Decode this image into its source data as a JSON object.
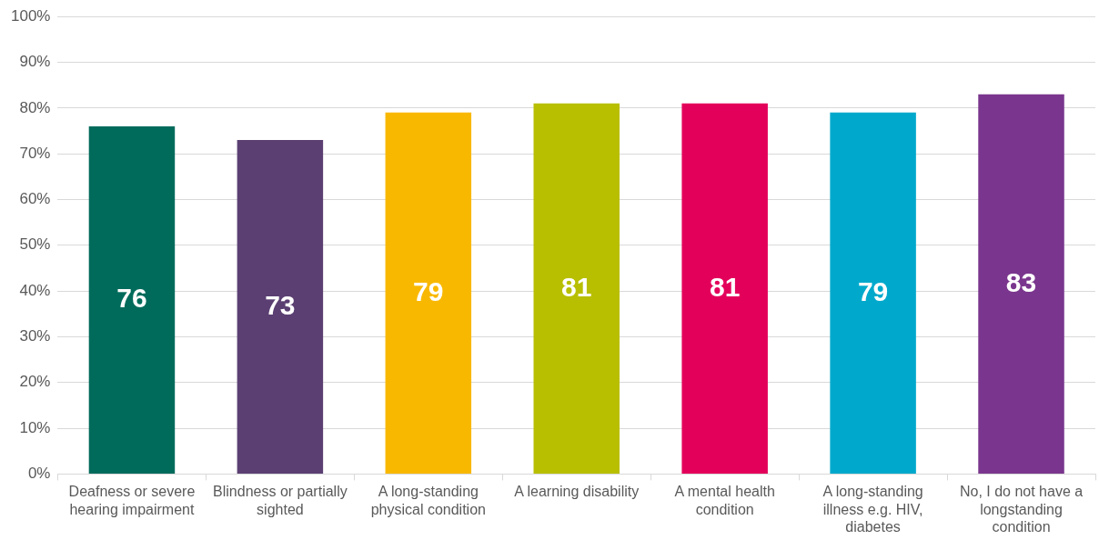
{
  "chart_data": {
    "type": "bar",
    "categories": [
      "Deafness or severe hearing impairment",
      "Blindness or partially sighted",
      "A long-standing physical condition",
      "A learning disability",
      "A mental health condition",
      "A long-standing illness e.g. HIV, diabetes",
      "No, I do not have a longstanding condition"
    ],
    "values": [
      76,
      73,
      79,
      81,
      81,
      79,
      83
    ],
    "colors": [
      "#006b5b",
      "#5b3f72",
      "#f9b800",
      "#b8bf00",
      "#e3005b",
      "#00a9cc",
      "#7a368e"
    ],
    "ylim": [
      0,
      100
    ],
    "yticks": [
      {
        "value": 0,
        "label": "0%"
      },
      {
        "value": 10,
        "label": "10%"
      },
      {
        "value": 20,
        "label": "20%"
      },
      {
        "value": 30,
        "label": "30%"
      },
      {
        "value": 40,
        "label": "40%"
      },
      {
        "value": 50,
        "label": "50%"
      },
      {
        "value": 60,
        "label": "60%"
      },
      {
        "value": 70,
        "label": "70%"
      },
      {
        "value": 80,
        "label": "80%"
      },
      {
        "value": 90,
        "label": "90%"
      },
      {
        "value": 100,
        "label": "100%"
      }
    ],
    "grid": "y",
    "legend": false,
    "data_labels": true
  }
}
